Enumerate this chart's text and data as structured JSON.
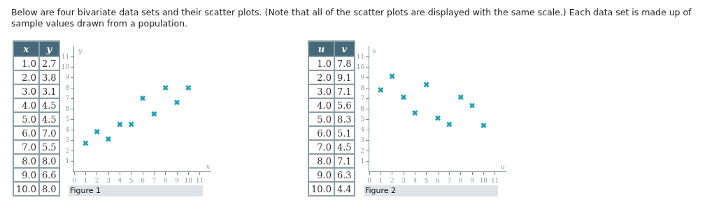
{
  "chart_data": [
    {
      "type": "scatter",
      "annotations": [
        "Below are four bivariate data sets and their scatter plots. (Note that all of the scatter plots are displayed with the same scale.) Each data set is made up of sample values drawn from a population.",
        "1.0",
        "2.7",
        "2.0",
        "3.8",
        "3.0",
        "3.1",
        "4.0",
        "4.5",
        "5.0",
        "4.5",
        "6.0",
        "7.0",
        "7.0",
        "5.5",
        "8.0",
        "8.0",
        "9.0",
        "6.6",
        "10.0",
        "8.0",
        "Figure 1"
      ],
      "xlabel": "x",
      "ylabel": "y",
      "x": [
        1,
        2,
        3,
        4,
        5,
        6,
        7,
        8,
        9,
        10
      ],
      "series": [
        {
          "color": "#1b9fb4",
          "values": [
            2.7,
            3.8,
            3.1,
            4.5,
            4.5,
            7.0,
            5.5,
            8.0,
            6.6,
            8.0
          ]
        }
      ],
      "marker": "cross",
      "grid": false,
      "xlim": [
        0,
        12
      ],
      "ylim": [
        0,
        12
      ],
      "xticks": [
        0,
        1,
        2,
        3,
        4,
        5,
        6,
        7,
        8,
        9,
        10,
        11
      ],
      "yticks": [
        1,
        2,
        3,
        4,
        5,
        6,
        7,
        8,
        9,
        10,
        11
      ]
    },
    {
      "type": "scatter",
      "annotations": [
        "1.0",
        "7.8",
        "2.0",
        "9.1",
        "3.0",
        "7.1",
        "4.0",
        "5.6",
        "5.0",
        "8.3",
        "6.0",
        "5.1",
        "7.0",
        "4.5",
        "8.0",
        "7.1",
        "9.0",
        "6.3",
        "10.0",
        "4.4",
        "Figure 2"
      ],
      "xlabel": "u",
      "ylabel": "v",
      "x": [
        1,
        2,
        3,
        4,
        5,
        6,
        7,
        8,
        9,
        10
      ],
      "series": [
        {
          "color": "#1b9fb4",
          "values": [
            7.8,
            9.1,
            7.1,
            5.6,
            8.3,
            5.1,
            4.5,
            7.1,
            6.3,
            4.4
          ]
        }
      ],
      "marker": "cross",
      "grid": false,
      "xlim": [
        0,
        12
      ],
      "ylim": [
        0,
        12
      ],
      "xticks": [
        0,
        1,
        2,
        3,
        4,
        5,
        6,
        7,
        8,
        9,
        10,
        11
      ],
      "yticks": [
        1,
        2,
        3,
        4,
        5,
        6,
        7,
        8,
        9,
        10,
        11
      ]
    }
  ]
}
